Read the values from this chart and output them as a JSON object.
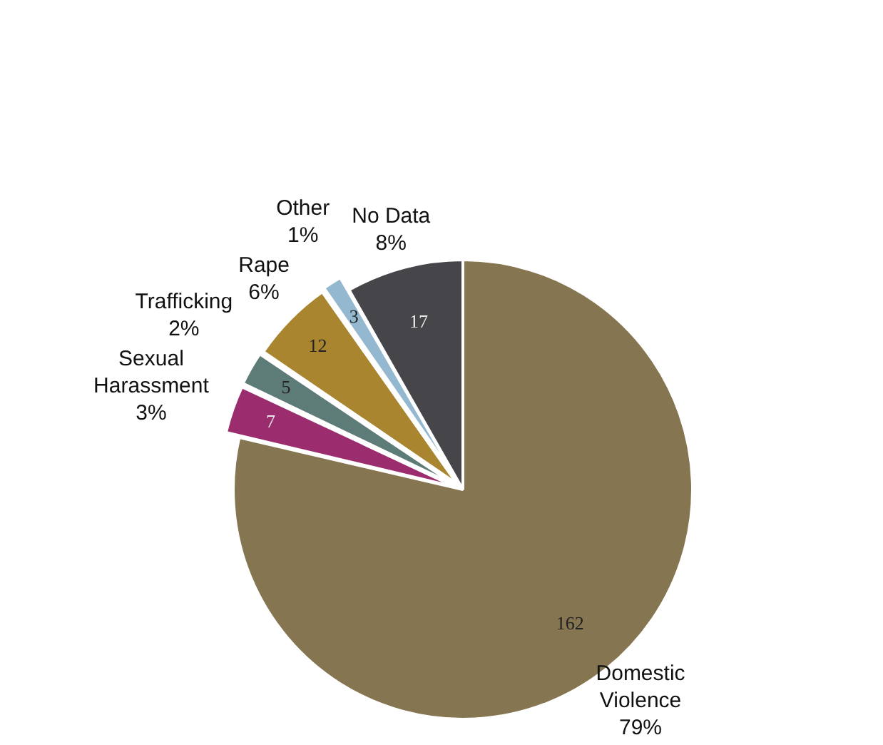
{
  "chart_data": {
    "type": "pie",
    "categories": [
      "Domestic Violence",
      "Sexual Harassment",
      "Trafficking",
      "Rape",
      "Other",
      "No Data"
    ],
    "values": [
      162,
      7,
      5,
      12,
      3,
      17
    ],
    "colors": [
      "#857550",
      "#9b2d6e",
      "#5d7b77",
      "#a8852e",
      "#94b8cf",
      "#46454a"
    ],
    "data_labels": true,
    "annotations": [
      "79%",
      "3%",
      "2%",
      "6%",
      "1%",
      "8%"
    ],
    "legend": false
  }
}
